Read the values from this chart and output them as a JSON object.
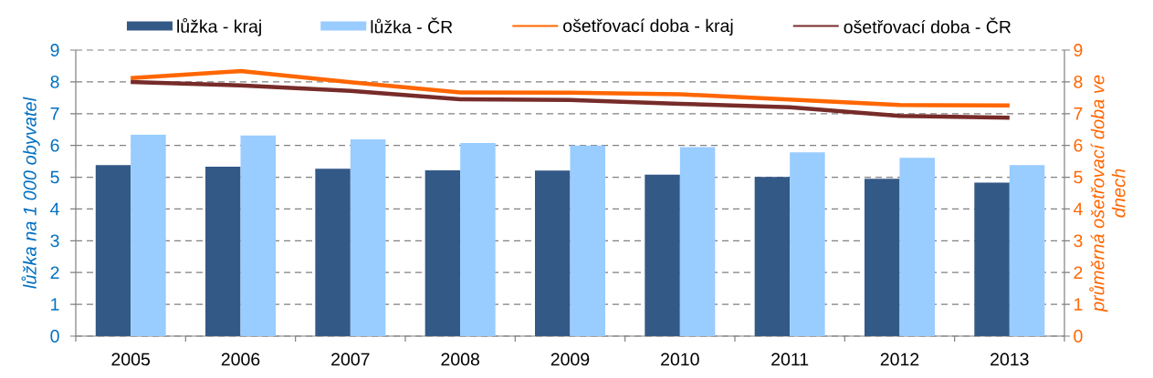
{
  "chart_data": {
    "type": "bar",
    "categories": [
      "2005",
      "2006",
      "2007",
      "2008",
      "2009",
      "2010",
      "2011",
      "2012",
      "2013"
    ],
    "ylabel": "lůžka na 1 000 obyvatel",
    "y2label": "průměrná ošetřovací doba ve dnech",
    "ylim": [
      0,
      9
    ],
    "yticks": [
      0,
      1,
      2,
      3,
      4,
      5,
      6,
      7,
      8,
      9
    ],
    "y2lim": [
      0,
      9
    ],
    "y2ticks": [
      0,
      1,
      2,
      3,
      4,
      5,
      6,
      7,
      8,
      9
    ],
    "grid": "y",
    "legend": "top",
    "series": [
      {
        "name": "lůžka - kraj",
        "color": "#335987",
        "values": [
          5.38,
          5.33,
          5.27,
          5.22,
          5.21,
          5.08,
          5.01,
          4.95,
          4.83
        ]
      },
      {
        "name": "lůžka - ČR",
        "color": "#99CCFF",
        "values": [
          6.34,
          6.31,
          6.19,
          6.08,
          6.0,
          5.95,
          5.78,
          5.61,
          5.38
        ]
      },
      {
        "name": "ošetřovací doba - kraj",
        "type": "line",
        "axis": "y2",
        "color": "#FF6600",
        "values": [
          8.12,
          8.34,
          7.99,
          7.67,
          7.66,
          7.61,
          7.44,
          7.27,
          7.26
        ]
      },
      {
        "name": "ošetřovací doba - ČR",
        "type": "line",
        "axis": "y2",
        "color": "#772C2A",
        "values": [
          8.0,
          7.89,
          7.72,
          7.45,
          7.43,
          7.31,
          7.2,
          6.93,
          6.87
        ]
      }
    ]
  }
}
